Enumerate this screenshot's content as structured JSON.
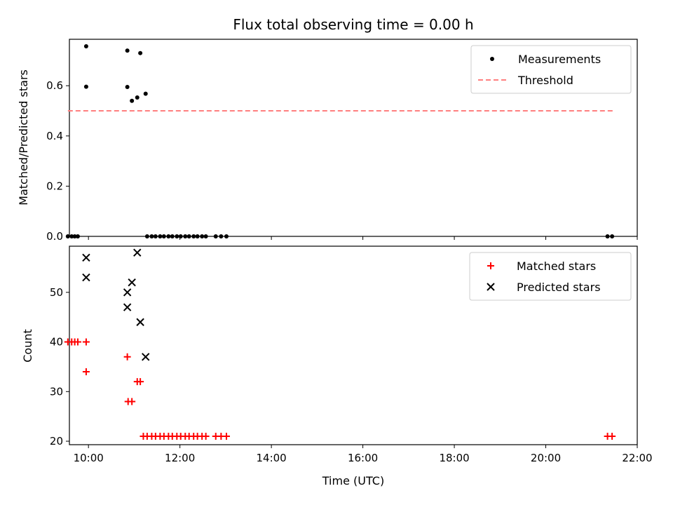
{
  "chart_data": [
    {
      "type": "scatter",
      "title": "Flux total observing time = 0.00 h",
      "xlabel": "",
      "ylabel": "Matched/Predicted stars",
      "xlim": [
        "09:35",
        "22:00"
      ],
      "ylim": [
        0,
        0.785
      ],
      "xticks": [
        "10:00",
        "12:00",
        "14:00",
        "16:00",
        "18:00",
        "20:00",
        "22:00"
      ],
      "yticks": [
        "0.0",
        "0.2",
        "0.4",
        "0.6"
      ],
      "grid": false,
      "legend_position": "top-right",
      "legend": [
        "Measurements",
        "Threshold"
      ],
      "colors": {
        "measurements": "#000000",
        "threshold": "#ff7f7f"
      },
      "series": [
        {
          "name": "Measurements",
          "type": "scatter",
          "points": [
            [
              "09:33",
              0.0
            ],
            [
              "09:38",
              0.0
            ],
            [
              "09:42",
              0.0
            ],
            [
              "09:46",
              0.0
            ],
            [
              "09:57",
              0.757
            ],
            [
              "09:57",
              0.596
            ],
            [
              "10:51",
              0.74
            ],
            [
              "10:51",
              0.595
            ],
            [
              "10:57",
              0.54
            ],
            [
              "11:04",
              0.553
            ],
            [
              "11:08",
              0.73
            ],
            [
              "11:15",
              0.568
            ],
            [
              "11:17",
              0.0
            ],
            [
              "11:23",
              0.0
            ],
            [
              "11:28",
              0.0
            ],
            [
              "11:34",
              0.0
            ],
            [
              "11:39",
              0.0
            ],
            [
              "11:45",
              0.0
            ],
            [
              "11:50",
              0.0
            ],
            [
              "11:56",
              0.0
            ],
            [
              "12:01",
              0.0
            ],
            [
              "12:07",
              0.0
            ],
            [
              "12:12",
              0.0
            ],
            [
              "12:18",
              0.0
            ],
            [
              "12:23",
              0.0
            ],
            [
              "12:29",
              0.0
            ],
            [
              "12:34",
              0.0
            ],
            [
              "12:47",
              0.0
            ],
            [
              "12:54",
              0.0
            ],
            [
              "13:01",
              0.0
            ],
            [
              "21:21",
              0.0
            ],
            [
              "21:27",
              0.0
            ]
          ]
        },
        {
          "name": "Threshold",
          "type": "line",
          "style": "dashed",
          "points": [
            [
              "09:33",
              0.5
            ],
            [
              "21:29",
              0.5
            ]
          ]
        }
      ]
    },
    {
      "type": "scatter",
      "title": "",
      "xlabel": "Time (UTC)",
      "ylabel": "Count",
      "xlim": [
        "09:35",
        "22:00"
      ],
      "ylim": [
        19.3,
        59.3
      ],
      "xticks": [
        "10:00",
        "12:00",
        "14:00",
        "16:00",
        "18:00",
        "20:00",
        "22:00"
      ],
      "yticks": [
        "20",
        "30",
        "40",
        "50"
      ],
      "grid": false,
      "legend_position": "top-right",
      "legend": [
        "Matched stars",
        "Predicted stars"
      ],
      "colors": {
        "matched": "#ff0000",
        "predicted": "#000000"
      },
      "series": [
        {
          "name": "Matched stars",
          "marker": "plus",
          "points": [
            [
              "09:33",
              40
            ],
            [
              "09:38",
              40
            ],
            [
              "09:42",
              40
            ],
            [
              "09:46",
              40
            ],
            [
              "09:57",
              40
            ],
            [
              "09:57",
              34
            ],
            [
              "10:51",
              37
            ],
            [
              "10:52",
              28
            ],
            [
              "10:57",
              28
            ],
            [
              "11:04",
              32
            ],
            [
              "11:08",
              32
            ],
            [
              "11:12",
              21
            ],
            [
              "11:17",
              21
            ],
            [
              "11:23",
              21
            ],
            [
              "11:28",
              21
            ],
            [
              "11:34",
              21
            ],
            [
              "11:39",
              21
            ],
            [
              "11:45",
              21
            ],
            [
              "11:50",
              21
            ],
            [
              "11:56",
              21
            ],
            [
              "12:01",
              21
            ],
            [
              "12:07",
              21
            ],
            [
              "12:12",
              21
            ],
            [
              "12:18",
              21
            ],
            [
              "12:23",
              21
            ],
            [
              "12:29",
              21
            ],
            [
              "12:34",
              21
            ],
            [
              "12:47",
              21
            ],
            [
              "12:54",
              21
            ],
            [
              "13:01",
              21
            ],
            [
              "21:21",
              21
            ],
            [
              "21:27",
              21
            ]
          ]
        },
        {
          "name": "Predicted stars",
          "marker": "x",
          "points": [
            [
              "09:57",
              57
            ],
            [
              "09:57",
              53
            ],
            [
              "10:51",
              50
            ],
            [
              "10:51",
              47
            ],
            [
              "10:57",
              52
            ],
            [
              "11:04",
              58
            ],
            [
              "11:08",
              44
            ],
            [
              "11:15",
              37
            ]
          ]
        }
      ]
    }
  ]
}
